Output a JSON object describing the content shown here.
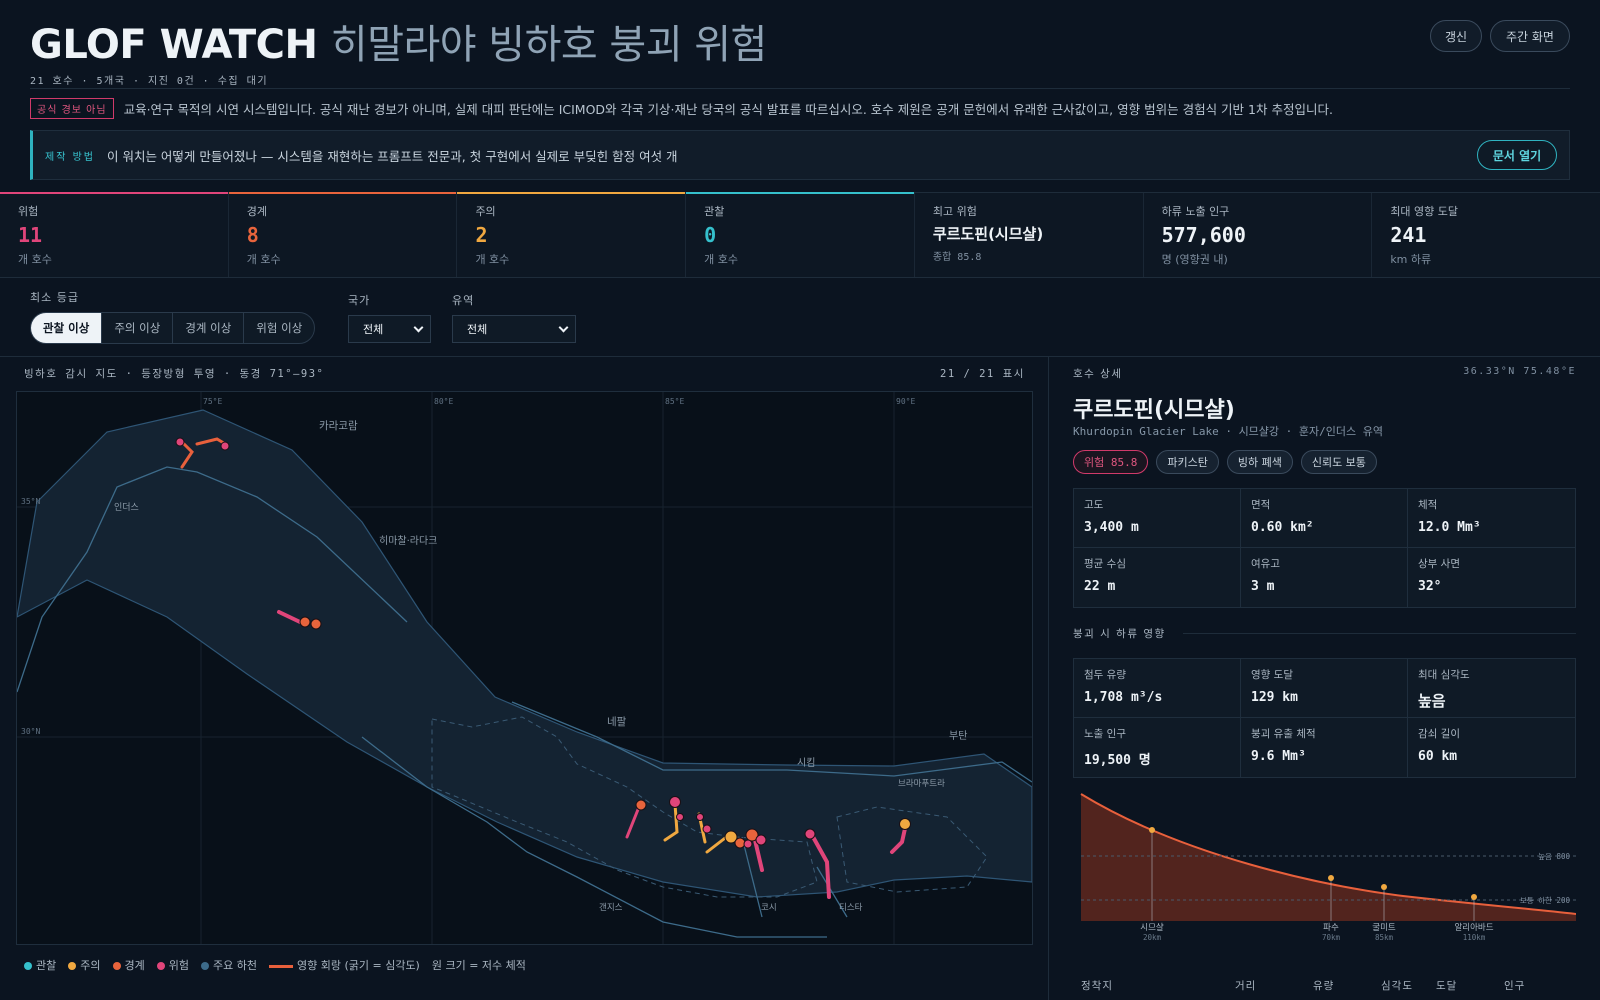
{
  "header": {
    "title_en": "GLOF WATCH",
    "title_ko": "히말라야 빙하호 붕괴 위험",
    "subline": "21 호수 · 5개국 · 지진 0건 · 수집 대기",
    "refresh_label": "갱신",
    "daytime_label": "주간 화면"
  },
  "notice": {
    "tag": "공식 경보 아님",
    "text": "교육·연구 목적의 시연 시스템입니다. 공식 재난 경보가 아니며, 실제 대피 판단에는 ICIMOD와 각국 기상·재난 당국의 공식 발표를 따르십시오. 호수 제원은 공개 문헌에서 유래한 근사값이고, 영향 범위는 경험식 기반 1차 추정입니다."
  },
  "method": {
    "label": "제작 방법",
    "text": "이 워치는 어떻게 만들어졌나 — 시스템을 재현하는 프롬프트 전문과, 첫 구현에서 실제로 부딪힌 함정 여섯 개",
    "button": "문서 열기"
  },
  "stats": [
    {
      "label": "위험",
      "value": "11",
      "sub": "개 호수",
      "color": "#e0457a"
    },
    {
      "label": "경계",
      "value": "8",
      "sub": "개 호수",
      "color": "#e8643c"
    },
    {
      "label": "주의",
      "value": "2",
      "sub": "개 호수",
      "color": "#f0a840"
    },
    {
      "label": "관찰",
      "value": "0",
      "sub": "개 호수",
      "color": "#35c0cc"
    },
    {
      "label": "최고 위험",
      "value": "쿠르도핀(시므샬)",
      "sub": "종합 85.8",
      "color": ""
    },
    {
      "label": "하류 노출 인구",
      "value": "577,600",
      "sub": "명 (영향권 내)",
      "color": ""
    },
    {
      "label": "최대 영향 도달",
      "value": "241",
      "sub": "km 하류",
      "color": ""
    }
  ],
  "filters": {
    "grade_label": "최소 등급",
    "grades": [
      "관찰 이상",
      "주의 이상",
      "경계 이상",
      "위험 이상"
    ],
    "country_label": "국가",
    "country_value": "전체",
    "basin_label": "유역",
    "basin_value": "전체"
  },
  "map": {
    "header": "빙하호 감시 지도 · 등장방형 투영 · 동경 71°–93°",
    "count": "21 / 21 표시",
    "lon_labels": [
      "75°E",
      "80°E",
      "85°E",
      "90°E"
    ],
    "lat_labels": [
      "35°N",
      "30°N"
    ],
    "regions": [
      "카라코람",
      "인더스",
      "히마찰·라다크",
      "네팔",
      "부탄",
      "시킴",
      "브라마푸트라",
      "갠지스",
      "코시",
      "티스타"
    ],
    "legend": {
      "observe": "관찰",
      "caution": "주의",
      "alert": "경계",
      "danger": "위험",
      "river": "주요 하천",
      "corridor": "영향 회랑 (굵기 = 심각도)",
      "size_note": "원 크기 = 저수 체적"
    },
    "colors": {
      "observe": "#35c0cc",
      "caution": "#f0a840",
      "alert": "#e8643c",
      "danger": "#e0457a",
      "river": "#3d6b8a"
    }
  },
  "detail": {
    "header": "호수 상세",
    "coord": "36.33°N 75.48°E",
    "name": "쿠르도핀(시므샬)",
    "subtitle": "Khurdopin Glacier Lake · 시므샬강 · 훈자/인더스 유역",
    "chips": [
      "위험 85.8",
      "파키스탄",
      "빙하 폐색",
      "신뢰도 보통"
    ],
    "specs": [
      {
        "k": "고도",
        "v": "3,400 m"
      },
      {
        "k": "면적",
        "v": "0.60 km²"
      },
      {
        "k": "체적",
        "v": "12.0 Mm³"
      },
      {
        "k": "평균 수심",
        "v": "22 m"
      },
      {
        "k": "여유고",
        "v": "3 m"
      },
      {
        "k": "상부 사면",
        "v": "32°"
      }
    ],
    "impact_label": "붕괴 시 하류 영향",
    "impact": [
      {
        "k": "첨두 유량",
        "v": "1,708 m³/s"
      },
      {
        "k": "영향 도달",
        "v": "129 km"
      },
      {
        "k": "최대 심각도",
        "v": "높음"
      },
      {
        "k": "노출 인구",
        "v": "19,500 명"
      },
      {
        "k": "붕괴 유출 체적",
        "v": "9.6 Mm³"
      },
      {
        "k": "감쇠 길이",
        "v": "60 km"
      }
    ],
    "curve": {
      "thresholds": [
        "높음 800",
        "보통 하한 200"
      ],
      "settlements": [
        {
          "name": "시므샬",
          "dist": "20km"
        },
        {
          "name": "파수",
          "dist": "70km"
        },
        {
          "name": "굴미트",
          "dist": "85km"
        },
        {
          "name": "알리아바드",
          "dist": "110km"
        }
      ]
    },
    "table_headers": [
      "정착지",
      "거리",
      "유량",
      "심각도",
      "도달",
      "인구"
    ]
  }
}
